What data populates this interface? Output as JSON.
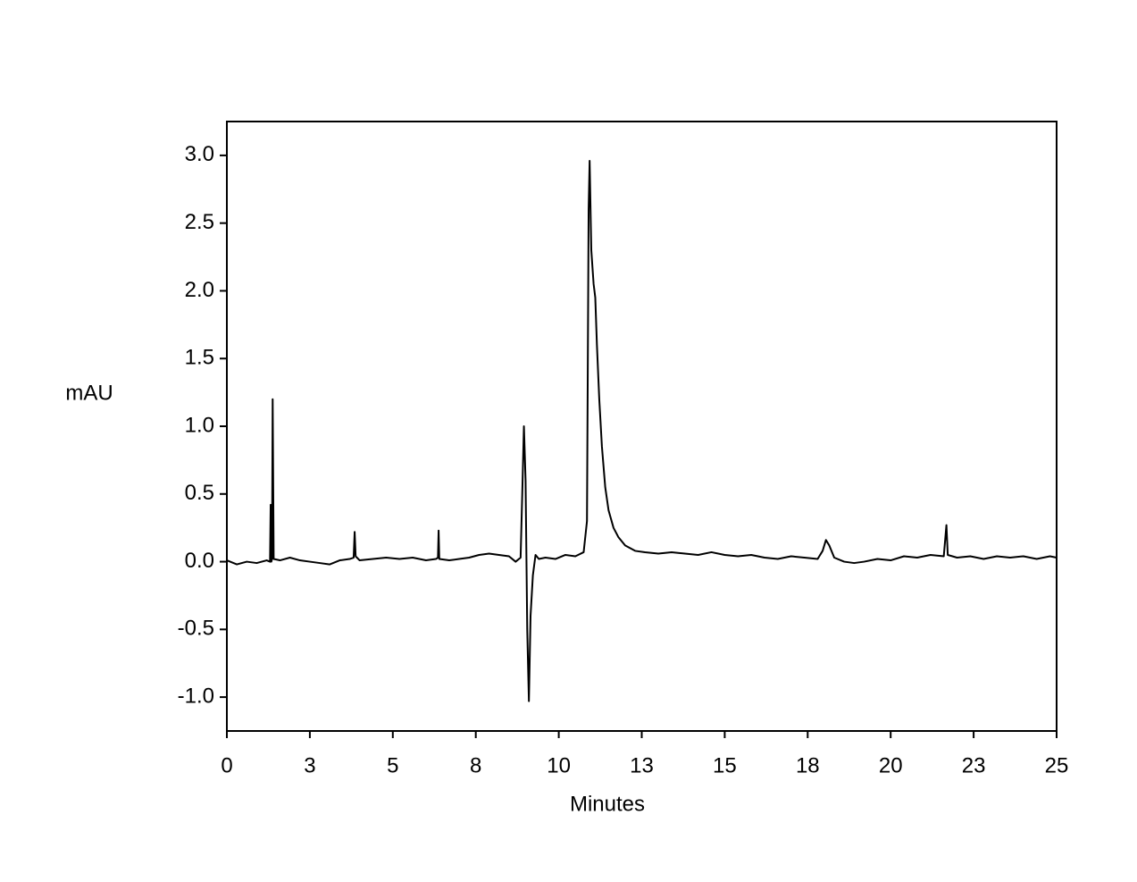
{
  "chart_data": {
    "type": "line",
    "xlabel": "Minutes",
    "ylabel": "mAU",
    "color": "#000000",
    "xlim": [
      0,
      25
    ],
    "ylim": [
      -1.25,
      3.25
    ],
    "xticks": [
      0,
      {
        "value": 2.5,
        "label": "3"
      },
      5,
      {
        "value": 7.5,
        "label": "8"
      },
      10,
      {
        "value": 12.5,
        "label": "13"
      },
      15,
      {
        "value": 17.5,
        "label": "18"
      },
      20,
      {
        "value": 22.5,
        "label": "23"
      },
      25
    ],
    "yticks": [
      {
        "value": -1,
        "label": "-1.0"
      },
      -0.5,
      {
        "value": 0,
        "label": "0.0"
      },
      0.5,
      {
        "value": 1,
        "label": "1.0"
      },
      1.5,
      {
        "value": 2,
        "label": "2.0"
      },
      2.5,
      {
        "value": 3,
        "label": "3.0"
      }
    ],
    "x": [
      0,
      0.3,
      0.6,
      0.9,
      1.2,
      1.3,
      1.32,
      1.34,
      1.36,
      1.38,
      1.41,
      1.6,
      1.9,
      2.2,
      2.5,
      2.8,
      3.1,
      3.4,
      3.7,
      3.82,
      3.85,
      3.88,
      4.0,
      4.4,
      4.8,
      5.2,
      5.6,
      6.0,
      6.3,
      6.36,
      6.38,
      6.4,
      6.7,
      7.0,
      7.3,
      7.6,
      7.9,
      8.2,
      8.5,
      8.7,
      8.85,
      8.9,
      8.95,
      9.0,
      9.05,
      9.1,
      9.15,
      9.22,
      9.3,
      9.4,
      9.6,
      9.9,
      10.2,
      10.5,
      10.75,
      10.85,
      10.9,
      10.93,
      10.98,
      11.05,
      11.1,
      11.15,
      11.22,
      11.3,
      11.4,
      11.5,
      11.65,
      11.8,
      12.0,
      12.3,
      12.6,
      13.0,
      13.4,
      13.8,
      14.2,
      14.6,
      15.0,
      15.4,
      15.8,
      16.2,
      16.6,
      17.0,
      17.4,
      17.8,
      17.95,
      18.05,
      18.15,
      18.3,
      18.6,
      18.9,
      19.2,
      19.6,
      20.0,
      20.4,
      20.8,
      21.2,
      21.6,
      21.68,
      21.72,
      22.0,
      22.4,
      22.8,
      23.2,
      23.6,
      24.0,
      24.4,
      24.8,
      25.0
    ],
    "values": [
      0.01,
      -0.02,
      0.0,
      -0.01,
      0.01,
      0.0,
      0.42,
      0.0,
      0.02,
      1.2,
      0.02,
      0.01,
      0.03,
      0.01,
      0.0,
      -0.01,
      -0.02,
      0.01,
      0.02,
      0.03,
      0.22,
      0.04,
      0.01,
      0.02,
      0.03,
      0.02,
      0.03,
      0.01,
      0.02,
      0.03,
      0.23,
      0.02,
      0.01,
      0.02,
      0.03,
      0.05,
      0.06,
      0.05,
      0.04,
      0.0,
      0.03,
      0.5,
      1.0,
      0.6,
      -0.5,
      -1.03,
      -0.4,
      -0.1,
      0.05,
      0.02,
      0.03,
      0.02,
      0.05,
      0.04,
      0.07,
      0.3,
      2.6,
      2.96,
      2.3,
      2.05,
      1.95,
      1.6,
      1.2,
      0.85,
      0.55,
      0.38,
      0.25,
      0.18,
      0.12,
      0.08,
      0.07,
      0.06,
      0.07,
      0.06,
      0.05,
      0.07,
      0.05,
      0.04,
      0.05,
      0.03,
      0.02,
      0.04,
      0.03,
      0.02,
      0.08,
      0.16,
      0.12,
      0.03,
      0.0,
      -0.01,
      0.0,
      0.02,
      0.01,
      0.04,
      0.03,
      0.05,
      0.04,
      0.27,
      0.05,
      0.03,
      0.04,
      0.02,
      0.04,
      0.03,
      0.04,
      0.02,
      0.04,
      0.03
    ]
  }
}
